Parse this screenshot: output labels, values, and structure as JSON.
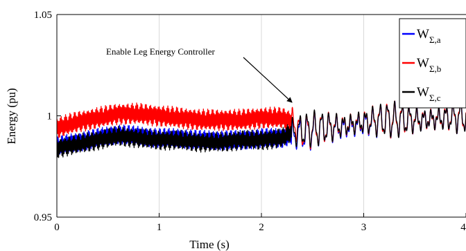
{
  "chart_data": {
    "type": "line",
    "title": "",
    "xlabel": "Time (s)",
    "ylabel": "Energy (pu)",
    "xlim": [
      0,
      4
    ],
    "ylim": [
      0.95,
      1.05
    ],
    "xticks": [
      "0",
      "1",
      "2",
      "3",
      "4"
    ],
    "yticks": [
      "0.95",
      "1",
      "1.05"
    ],
    "grid": "vertical",
    "legend_position": "top-right",
    "annotation": {
      "text": "Enable Leg Energy Controller",
      "x": 2.3,
      "y": 1.005
    },
    "series": [
      {
        "name": "WΣ,a",
        "color": "#0000ff",
        "x": [
          0.0,
          0.2,
          0.4,
          0.6,
          0.8,
          1.0,
          1.2,
          1.4,
          1.6,
          1.8,
          2.0,
          2.2,
          2.3,
          2.4,
          2.6,
          2.8,
          3.0,
          3.2,
          3.4,
          3.6,
          3.8,
          4.0
        ],
        "values": [
          0.985,
          0.987,
          0.989,
          0.991,
          0.99,
          0.989,
          0.989,
          0.988,
          0.988,
          0.988,
          0.989,
          0.989,
          0.991,
          0.991,
          0.994,
          0.994,
          0.996,
          0.998,
          0.998,
          0.998,
          0.999,
          1.0
        ]
      },
      {
        "name": "WΣ,b",
        "color": "#ff0000",
        "x": [
          0.0,
          0.2,
          0.4,
          0.6,
          0.8,
          1.0,
          1.2,
          1.4,
          1.6,
          1.8,
          2.0,
          2.2,
          2.3,
          2.4,
          2.6,
          2.8,
          3.0,
          3.2,
          3.4,
          3.6,
          3.8,
          4.0
        ],
        "values": [
          0.994,
          0.997,
          0.999,
          1.001,
          1.001,
          1.0,
          0.999,
          0.998,
          0.998,
          0.998,
          0.999,
          0.999,
          0.997,
          0.992,
          0.994,
          0.995,
          0.997,
          0.998,
          0.998,
          0.998,
          0.999,
          1.0
        ]
      },
      {
        "name": "WΣ,c",
        "color": "#000000",
        "x": [
          0.0,
          0.2,
          0.4,
          0.6,
          0.8,
          1.0,
          1.2,
          1.4,
          1.6,
          1.8,
          2.0,
          2.2,
          2.3,
          2.4,
          2.6,
          2.8,
          3.0,
          3.2,
          3.4,
          3.6,
          3.8,
          4.0
        ],
        "values": [
          0.984,
          0.986,
          0.988,
          0.99,
          0.989,
          0.988,
          0.988,
          0.987,
          0.987,
          0.988,
          0.988,
          0.989,
          0.992,
          0.993,
          0.994,
          0.995,
          0.997,
          0.998,
          0.998,
          0.998,
          0.999,
          1.0
        ]
      }
    ]
  }
}
